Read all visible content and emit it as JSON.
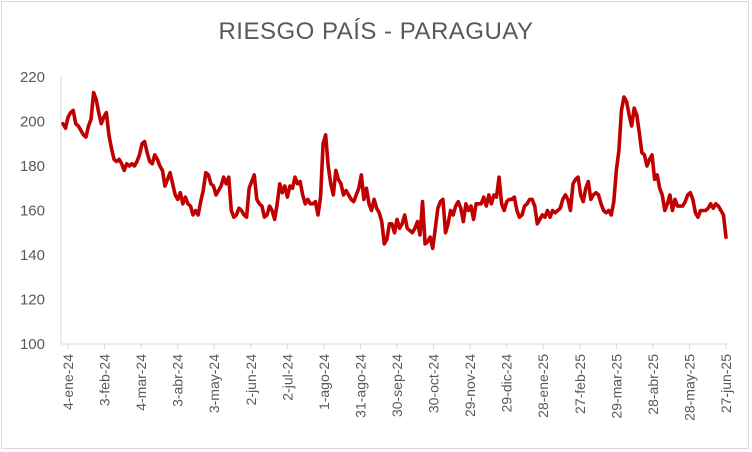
{
  "chart_data": {
    "type": "line",
    "title": "RIESGO PAÍS - PARAGUAY",
    "xlabel": "",
    "ylabel": "",
    "ylim": [
      100,
      220
    ],
    "yticks": [
      100,
      120,
      140,
      160,
      180,
      200,
      220
    ],
    "xticks": [
      "4-ene-24",
      "3-feb-24",
      "4-mar-24",
      "3-abr-24",
      "3-may-24",
      "2-jun-24",
      "2-jul-24",
      "1-ago-24",
      "31-ago-24",
      "30-sep-24",
      "30-oct-24",
      "29-nov-24",
      "29-dic-24",
      "28-ene-25",
      "27-feb-25",
      "29-mar-25",
      "28-abr-25",
      "28-may-25",
      "27-jun-25"
    ],
    "grid": false,
    "legend": "none",
    "color": "#c00000",
    "series": [
      {
        "values": [
          199,
          197,
          202,
          204,
          205,
          199,
          198,
          196,
          194,
          193,
          198,
          201,
          213,
          210,
          204,
          199,
          202,
          204,
          194,
          188,
          183,
          182,
          183,
          181,
          178,
          181,
          180,
          181,
          180,
          182,
          185,
          190,
          191,
          186,
          182,
          181,
          185,
          183,
          180,
          178,
          171,
          174,
          177,
          172,
          167,
          165,
          168,
          163,
          166,
          163,
          162,
          158,
          160,
          158,
          164,
          169,
          177,
          176,
          172,
          171,
          167,
          169,
          171,
          175,
          172,
          175,
          160,
          157,
          158,
          161,
          160,
          158,
          157,
          170,
          173,
          176,
          165,
          163,
          162,
          157,
          158,
          162,
          160,
          156,
          163,
          172,
          168,
          171,
          166,
          171,
          170,
          175,
          172,
          173,
          167,
          163,
          165,
          163,
          163,
          164,
          158,
          166,
          190,
          194,
          180,
          172,
          167,
          178,
          174,
          172,
          167,
          169,
          167,
          165,
          164,
          167,
          170,
          176,
          165,
          170,
          163,
          160,
          165,
          161,
          159,
          155,
          145,
          147,
          154,
          154,
          150,
          156,
          152,
          154,
          158,
          152,
          151,
          150,
          152,
          155,
          149,
          164,
          145,
          146,
          148,
          143,
          152,
          161,
          164,
          165,
          150,
          154,
          160,
          158,
          162,
          164,
          161,
          155,
          163,
          160,
          162,
          156,
          163,
          163,
          163,
          166,
          162,
          167,
          163,
          167,
          166,
          175,
          163,
          160,
          164,
          165,
          165,
          166,
          160,
          157,
          158,
          162,
          163,
          165,
          165,
          162,
          154,
          156,
          158,
          157,
          160,
          157,
          160,
          159,
          160,
          161,
          165,
          167,
          165,
          160,
          172,
          174,
          175,
          167,
          164,
          170,
          173,
          165,
          167,
          168,
          167,
          163,
          160,
          159,
          160,
          158,
          164,
          178,
          187,
          205,
          211,
          209,
          203,
          198,
          206,
          203,
          195,
          186,
          185,
          180,
          183,
          185,
          174,
          176,
          170,
          167,
          160,
          163,
          167,
          160,
          165,
          162,
          162,
          162,
          164,
          167,
          168,
          165,
          159,
          157,
          160,
          160,
          160,
          161,
          163,
          161,
          163,
          162,
          160,
          158,
          148
        ]
      }
    ]
  }
}
